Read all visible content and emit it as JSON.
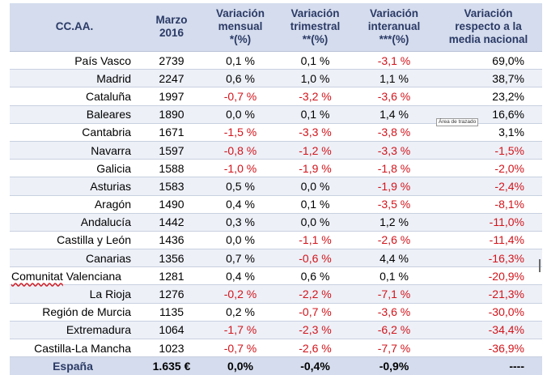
{
  "headers": [
    "CC.AA.",
    "Marzo\n2016",
    "Variación\nmensual\n*(%)",
    "Variación\ntrimestral\n**(%)",
    "Variación\ninteranual\n***(%)",
    "Variación\nrespecto a la\nmedia nacional"
  ],
  "rows": [
    {
      "region": "País Vasco",
      "value": "2739",
      "mensual": "0,1 %",
      "trimestral": "0,1 %",
      "interanual": "-3,1 %",
      "nacional": "69,0%"
    },
    {
      "region": "Madrid",
      "value": "2247",
      "mensual": "0,6 %",
      "trimestral": "1,0 %",
      "interanual": "1,1 %",
      "nacional": "38,7%"
    },
    {
      "region": "Cataluña",
      "value": "1997",
      "mensual": "-0,7 %",
      "trimestral": "-3,2 %",
      "interanual": "-3,6 %",
      "nacional": "23,2%"
    },
    {
      "region": "Baleares",
      "value": "1890",
      "mensual": "0,0 %",
      "trimestral": "0,1 %",
      "interanual": "1,4 %",
      "nacional": "16,6%"
    },
    {
      "region": "Cantabria",
      "value": "1671",
      "mensual": "-1,5 %",
      "trimestral": "-3,3 %",
      "interanual": "-3,8 %",
      "nacional": "3,1%"
    },
    {
      "region": "Navarra",
      "value": "1597",
      "mensual": "-0,8 %",
      "trimestral": "-1,2 %",
      "interanual": "-3,3 %",
      "nacional": "-1,5%"
    },
    {
      "region": "Galicia",
      "value": "1588",
      "mensual": "-1,0 %",
      "trimestral": "-1,9 %",
      "interanual": "-1,8 %",
      "nacional": "-2,0%"
    },
    {
      "region": "Asturias",
      "value": "1583",
      "mensual": "0,5 %",
      "trimestral": "0,0 %",
      "interanual": "-1,9 %",
      "nacional": "-2,4%"
    },
    {
      "region": "Aragón",
      "value": "1490",
      "mensual": "0,4 %",
      "trimestral": "0,1 %",
      "interanual": "-3,5 %",
      "nacional": "-8,1%"
    },
    {
      "region": "Andalucía",
      "value": "1442",
      "mensual": "0,3 %",
      "trimestral": "0,0 %",
      "interanual": "1,2 %",
      "nacional": "-11,0%"
    },
    {
      "region": "Castilla y León",
      "value": "1436",
      "mensual": "0,0 %",
      "trimestral": "-1,1 %",
      "interanual": "-2,6 %",
      "nacional": "-11,4%"
    },
    {
      "region": "Canarias",
      "value": "1356",
      "mensual": "0,7 %",
      "trimestral": "-0,6 %",
      "interanual": "4,4 %",
      "nacional": "-16,3%"
    },
    {
      "region": "Comunitat Valenciana",
      "value": "1281",
      "mensual": "0,4 %",
      "trimestral": "0,6 %",
      "interanual": "0,1 %",
      "nacional": "-20,9%"
    },
    {
      "region": "La Rioja",
      "value": "1276",
      "mensual": "-0,2 %",
      "trimestral": "-2,2 %",
      "interanual": "-7,1 %",
      "nacional": "-21,3%"
    },
    {
      "region": "Región de Murcia",
      "value": "1135",
      "mensual": "0,2 %",
      "trimestral": "-0,7 %",
      "interanual": "-3,6 %",
      "nacional": "-30,0%"
    },
    {
      "region": "Extremadura",
      "value": "1064",
      "mensual": "-1,7 %",
      "trimestral": "-2,3 %",
      "interanual": "-6,2 %",
      "nacional": "-34,4%"
    },
    {
      "region": "Castilla-La Mancha",
      "value": "1023",
      "mensual": "-0,7 %",
      "trimestral": "-2,6 %",
      "interanual": "-7,7 %",
      "nacional": "-36,9%"
    }
  ],
  "total": {
    "region": "España",
    "value": "1.635 €",
    "mensual": "0,0%",
    "trimestral": "-0,4%",
    "interanual": "-0,9%",
    "nacional": "----"
  },
  "tooltip": "Área de trazado",
  "colors": {
    "header_bg": "#d4dced",
    "header_text": "#2b3a66",
    "negative": "#d3141b",
    "stripe": "#edf0f7"
  }
}
